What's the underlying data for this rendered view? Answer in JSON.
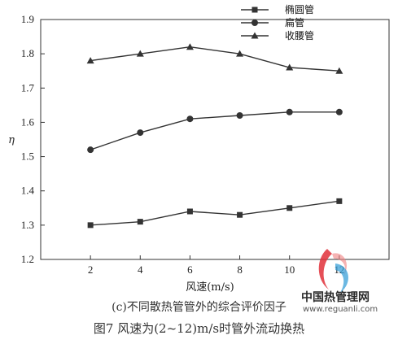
{
  "chart_data": {
    "type": "line",
    "x": [
      2,
      4,
      6,
      8,
      10,
      12
    ],
    "series": [
      {
        "name": "椭圆管",
        "marker": "square",
        "values": [
          1.3,
          1.31,
          1.34,
          1.33,
          1.35,
          1.37
        ]
      },
      {
        "name": "扁管",
        "marker": "circle",
        "values": [
          1.52,
          1.57,
          1.61,
          1.62,
          1.63,
          1.63
        ]
      },
      {
        "name": "收腰管",
        "marker": "triangle",
        "values": [
          1.78,
          1.8,
          1.82,
          1.8,
          1.76,
          1.75
        ]
      }
    ],
    "xlabel": "风速(m/s)",
    "ylabel": "η",
    "xlim": [
      0,
      14
    ],
    "ylim": [
      1.2,
      1.9
    ],
    "xticks": [
      "2",
      "4",
      "6",
      "8",
      "10",
      "12"
    ],
    "yticks": [
      "1.2",
      "1.3",
      "1.4",
      "1.5",
      "1.6",
      "1.7",
      "1.8",
      "1.9"
    ],
    "legend_position": "top-right",
    "grid": false,
    "line_color": "#333333"
  },
  "captions": {
    "sub": "(c)不同散热管管外的综合评价因子",
    "figure": "图7  风速为(2~12)m/s时管外流动换热"
  },
  "watermark": {
    "title": "中国热管理网",
    "url": "www.reguanli.com"
  }
}
